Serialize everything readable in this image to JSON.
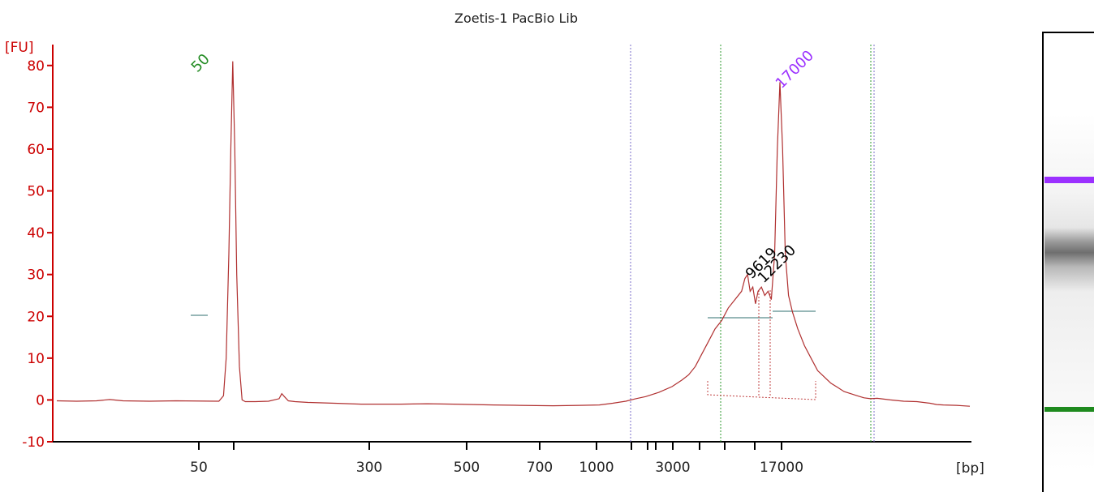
{
  "chart_data": {
    "type": "line",
    "title": "Zoetis-1 PacBio Lib",
    "y_unit": "[FU]",
    "x_unit": "[bp]",
    "ylim": [
      -10,
      85
    ],
    "y_ticks": [
      -10,
      0,
      10,
      20,
      30,
      40,
      50,
      60,
      70,
      80
    ],
    "x_tick_labels": [
      "50",
      "300",
      "500",
      "700",
      "1000",
      "3000",
      "17000"
    ],
    "x_tick_marks": [
      "50",
      "",
      "300",
      "500",
      "700",
      "1000",
      "",
      "",
      "",
      "3000",
      "",
      "",
      "",
      "17000"
    ],
    "grid": false,
    "line_color": "#b03030",
    "axis_color": "#cc0000",
    "peaks": [
      {
        "label": "50",
        "value": 81,
        "color": "#228b22"
      },
      {
        "label": "17000",
        "value": 76,
        "color": "#9b30ff"
      },
      {
        "label": "9619",
        "value": 30,
        "color": "#000000"
      },
      {
        "label": "12230",
        "value": 27,
        "color": "#000000"
      }
    ],
    "series": [
      {
        "values": [
          [
            0,
            -0.2
          ],
          [
            3,
            -0.3
          ],
          [
            6,
            -0.2
          ],
          [
            8,
            0.1
          ],
          [
            10,
            -0.2
          ],
          [
            14,
            -0.3
          ],
          [
            18,
            -0.2
          ],
          [
            24.5,
            -0.3
          ],
          [
            25.2,
            1
          ],
          [
            25.6,
            10
          ],
          [
            26.0,
            35
          ],
          [
            26.3,
            60
          ],
          [
            26.6,
            81
          ],
          [
            26.9,
            60
          ],
          [
            27.2,
            30
          ],
          [
            27.6,
            8
          ],
          [
            28.0,
            0
          ],
          [
            28.5,
            -0.4
          ],
          [
            30,
            -0.4
          ],
          [
            32,
            -0.3
          ],
          [
            33.6,
            0.3
          ],
          [
            34,
            1.5
          ],
          [
            34.4,
            0.8
          ],
          [
            35,
            -0.2
          ],
          [
            36,
            -0.4
          ],
          [
            38,
            -0.6
          ],
          [
            42,
            -0.8
          ],
          [
            46,
            -1.0
          ],
          [
            52,
            -1.0
          ],
          [
            56,
            -0.9
          ],
          [
            60,
            -1.0
          ],
          [
            66,
            -1.2
          ],
          [
            70,
            -1.3
          ],
          [
            75,
            -1.4
          ],
          [
            79,
            -1.3
          ],
          [
            82,
            -1.2
          ],
          [
            84,
            -0.8
          ],
          [
            86,
            -0.3
          ],
          [
            87.5,
            0.3
          ],
          [
            89,
            0.8
          ],
          [
            91,
            1.8
          ],
          [
            93,
            3.2
          ],
          [
            94.5,
            4.8
          ],
          [
            95.5,
            6
          ],
          [
            96.5,
            8
          ],
          [
            97.5,
            11
          ],
          [
            98.5,
            14
          ],
          [
            99.5,
            17
          ],
          [
            100.5,
            19
          ],
          [
            101.5,
            22
          ],
          [
            102.5,
            24
          ],
          [
            103.5,
            26
          ],
          [
            104,
            29
          ],
          [
            104.4,
            30
          ],
          [
            104.8,
            26
          ],
          [
            105.2,
            27
          ],
          [
            105.6,
            23
          ],
          [
            106,
            26
          ],
          [
            106.5,
            27
          ],
          [
            107,
            25
          ],
          [
            107.5,
            26
          ],
          [
            108,
            24
          ],
          [
            108.5,
            35
          ],
          [
            108.9,
            60
          ],
          [
            109.3,
            76
          ],
          [
            109.7,
            60
          ],
          [
            110.1,
            35
          ],
          [
            110.6,
            25
          ],
          [
            111.2,
            21
          ],
          [
            112,
            17
          ],
          [
            113,
            13
          ],
          [
            114,
            10
          ],
          [
            115,
            7
          ],
          [
            116,
            5.5
          ],
          [
            117,
            4
          ],
          [
            118,
            3
          ],
          [
            119,
            2
          ],
          [
            120,
            1.5
          ],
          [
            121,
            1
          ],
          [
            122,
            0.5
          ],
          [
            123,
            0.3
          ],
          [
            124,
            0.4
          ],
          [
            126,
            0
          ],
          [
            128,
            -0.3
          ],
          [
            130,
            -0.4
          ],
          [
            132,
            -0.8
          ],
          [
            133,
            -1.1
          ],
          [
            134,
            -1.2
          ],
          [
            136,
            -1.3
          ],
          [
            138,
            -1.5
          ]
        ]
      }
    ]
  }
}
